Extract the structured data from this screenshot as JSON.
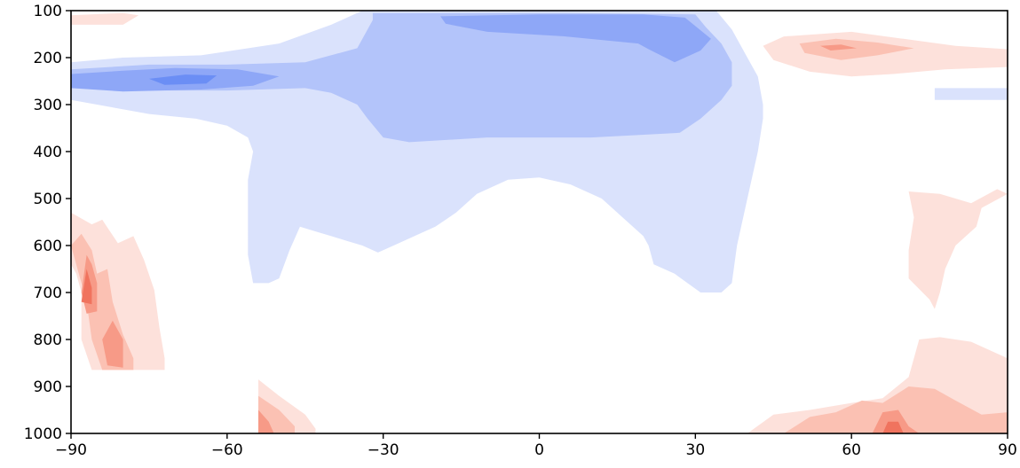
{
  "chart_data": {
    "type": "heatmap",
    "subtype": "filled-contour",
    "title": "",
    "xlabel": "",
    "ylabel": "",
    "xlim": [
      -90,
      90
    ],
    "ylim": [
      1000,
      100
    ],
    "y_inverted": true,
    "x_ticks": [
      -90,
      -60,
      -30,
      0,
      30,
      60,
      90
    ],
    "x_tick_labels": [
      "−90",
      "−60",
      "−30",
      "0",
      "30",
      "60",
      "90"
    ],
    "y_ticks": [
      100,
      200,
      300,
      400,
      500,
      600,
      700,
      800,
      900,
      1000
    ],
    "y_tick_labels": [
      "100",
      "200",
      "300",
      "400",
      "500",
      "600",
      "700",
      "800",
      "900",
      "1000"
    ],
    "colormap": "diverging blue-white-red (negative = blue, positive = red)",
    "grid": false,
    "colors": {
      "neg4": "#6b8ef5",
      "neg3": "#8ea7f7",
      "neg2": "#b3c4fa",
      "neg1": "#dae2fc",
      "pos1": "#fde1db",
      "pos2": "#fbc1b3",
      "pos3": "#f79a87",
      "pos4": "#f0735e"
    },
    "regions": [
      {
        "level": "neg1",
        "points": [
          [
            -90,
            210
          ],
          [
            -80,
            200
          ],
          [
            -65,
            195
          ],
          [
            -50,
            170
          ],
          [
            -40,
            130
          ],
          [
            -34,
            100
          ],
          [
            10,
            100
          ],
          [
            34,
            100
          ],
          [
            37,
            140
          ],
          [
            40,
            200
          ],
          [
            42,
            240
          ],
          [
            43,
            300
          ],
          [
            43,
            330
          ],
          [
            42,
            400
          ],
          [
            40,
            500
          ],
          [
            38,
            600
          ],
          [
            37,
            680
          ],
          [
            35,
            700
          ],
          [
            31,
            700
          ],
          [
            26,
            660
          ],
          [
            22,
            640
          ],
          [
            21,
            600
          ],
          [
            20,
            580
          ],
          [
            16,
            540
          ],
          [
            12,
            500
          ],
          [
            6,
            470
          ],
          [
            0,
            455
          ],
          [
            -6,
            460
          ],
          [
            -12,
            490
          ],
          [
            -16,
            530
          ],
          [
            -20,
            560
          ],
          [
            -24,
            580
          ],
          [
            -28,
            600
          ],
          [
            -31,
            615
          ],
          [
            -34,
            600
          ],
          [
            -37,
            590
          ],
          [
            -40,
            580
          ],
          [
            -43,
            570
          ],
          [
            -46,
            560
          ],
          [
            -48,
            610
          ],
          [
            -50,
            670
          ],
          [
            -52,
            680
          ],
          [
            -55,
            680
          ],
          [
            -56,
            620
          ],
          [
            -56,
            560
          ],
          [
            -56,
            460
          ],
          [
            -55,
            400
          ],
          [
            -56,
            370
          ],
          [
            -60,
            345
          ],
          [
            -66,
            330
          ],
          [
            -75,
            320
          ],
          [
            -85,
            300
          ],
          [
            -90,
            290
          ]
        ]
      },
      {
        "level": "neg1",
        "points": [
          [
            76,
            265
          ],
          [
            90,
            265
          ],
          [
            90,
            290
          ],
          [
            76,
            290
          ]
        ]
      },
      {
        "level": "neg2",
        "points": [
          [
            -90,
            225
          ],
          [
            -75,
            215
          ],
          [
            -60,
            215
          ],
          [
            -45,
            210
          ],
          [
            -35,
            180
          ],
          [
            -32,
            120
          ],
          [
            -32,
            105
          ],
          [
            5,
            105
          ],
          [
            30,
            108
          ],
          [
            32,
            135
          ],
          [
            35,
            170
          ],
          [
            37,
            210
          ],
          [
            37,
            260
          ],
          [
            35,
            290
          ],
          [
            31,
            330
          ],
          [
            27,
            360
          ],
          [
            10,
            370
          ],
          [
            -10,
            370
          ],
          [
            -25,
            380
          ],
          [
            -30,
            370
          ],
          [
            -33,
            330
          ],
          [
            -35,
            300
          ],
          [
            -40,
            275
          ],
          [
            -45,
            265
          ],
          [
            -60,
            270
          ],
          [
            -75,
            270
          ],
          [
            -90,
            260
          ]
        ]
      },
      {
        "level": "neg3",
        "points": [
          [
            -90,
            235
          ],
          [
            -80,
            228
          ],
          [
            -70,
            222
          ],
          [
            -58,
            225
          ],
          [
            -50,
            240
          ],
          [
            -55,
            260
          ],
          [
            -65,
            268
          ],
          [
            -80,
            272
          ],
          [
            -90,
            265
          ]
        ]
      },
      {
        "level": "neg3",
        "points": [
          [
            -19,
            112
          ],
          [
            0,
            108
          ],
          [
            20,
            108
          ],
          [
            28,
            115
          ],
          [
            33,
            160
          ],
          [
            31,
            185
          ],
          [
            26,
            210
          ],
          [
            21,
            182
          ],
          [
            19,
            170
          ],
          [
            5,
            155
          ],
          [
            -10,
            145
          ],
          [
            -18,
            128
          ]
        ]
      },
      {
        "level": "neg4",
        "points": [
          [
            -75,
            245
          ],
          [
            -68,
            236
          ],
          [
            -62,
            238
          ],
          [
            -64,
            255
          ],
          [
            -72,
            258
          ]
        ]
      },
      {
        "level": "pos1",
        "points": [
          [
            -90,
            110
          ],
          [
            -80,
            105
          ],
          [
            -77,
            110
          ],
          [
            -80,
            130
          ],
          [
            -90,
            130
          ]
        ]
      },
      {
        "level": "pos1",
        "points": [
          [
            43,
            175
          ],
          [
            47,
            155
          ],
          [
            60,
            145
          ],
          [
            70,
            160
          ],
          [
            80,
            175
          ],
          [
            90,
            182
          ],
          [
            90,
            220
          ],
          [
            78,
            225
          ],
          [
            68,
            235
          ],
          [
            60,
            240
          ],
          [
            52,
            230
          ],
          [
            45,
            205
          ]
        ]
      },
      {
        "level": "pos1",
        "points": [
          [
            -90,
            530
          ],
          [
            -86,
            555
          ],
          [
            -84,
            545
          ],
          [
            -81,
            595
          ],
          [
            -78,
            580
          ],
          [
            -76,
            630
          ],
          [
            -74,
            695
          ],
          [
            -73,
            775
          ],
          [
            -72,
            840
          ],
          [
            -72,
            865
          ],
          [
            -86,
            865
          ],
          [
            -88,
            800
          ],
          [
            -88,
            700
          ],
          [
            -89,
            660
          ],
          [
            -90,
            640
          ]
        ]
      },
      {
        "level": "pos1",
        "points": [
          [
            -54,
            885
          ],
          [
            -50,
            920
          ],
          [
            -45,
            960
          ],
          [
            -43,
            990
          ],
          [
            -43,
            1000
          ],
          [
            -54,
            1000
          ]
        ]
      },
      {
        "level": "pos1",
        "points": [
          [
            71,
            485
          ],
          [
            77,
            490
          ],
          [
            83,
            510
          ],
          [
            88,
            480
          ],
          [
            90,
            490
          ],
          [
            85,
            520
          ],
          [
            84,
            560
          ],
          [
            80,
            600
          ],
          [
            78,
            650
          ],
          [
            77,
            700
          ],
          [
            76,
            735
          ],
          [
            75,
            715
          ],
          [
            71,
            670
          ],
          [
            71,
            610
          ],
          [
            72,
            540
          ]
        ]
      },
      {
        "level": "pos1",
        "points": [
          [
            40,
            1000
          ],
          [
            45,
            960
          ],
          [
            52,
            950
          ],
          [
            60,
            935
          ],
          [
            66,
            925
          ],
          [
            71,
            880
          ],
          [
            73,
            800
          ],
          [
            77,
            795
          ],
          [
            83,
            805
          ],
          [
            90,
            840
          ],
          [
            90,
            1000
          ]
        ]
      },
      {
        "level": "pos2",
        "points": [
          [
            -90,
            600
          ],
          [
            -88,
            575
          ],
          [
            -86,
            610
          ],
          [
            -85,
            660
          ],
          [
            -83,
            650
          ],
          [
            -82,
            720
          ],
          [
            -80,
            790
          ],
          [
            -78,
            840
          ],
          [
            -78,
            865
          ],
          [
            -84,
            865
          ],
          [
            -86,
            800
          ],
          [
            -87,
            720
          ]
        ]
      },
      {
        "level": "pos2",
        "points": [
          [
            -54,
            920
          ],
          [
            -50,
            950
          ],
          [
            -47,
            985
          ],
          [
            -47,
            1000
          ],
          [
            -54,
            1000
          ]
        ]
      },
      {
        "level": "pos2",
        "points": [
          [
            50,
            170
          ],
          [
            57,
            160
          ],
          [
            65,
            168
          ],
          [
            72,
            180
          ],
          [
            65,
            195
          ],
          [
            58,
            205
          ],
          [
            51,
            190
          ]
        ]
      },
      {
        "level": "pos2",
        "points": [
          [
            47,
            1000
          ],
          [
            52,
            965
          ],
          [
            57,
            955
          ],
          [
            62,
            930
          ],
          [
            66,
            935
          ],
          [
            71,
            900
          ],
          [
            76,
            905
          ],
          [
            80,
            930
          ],
          [
            85,
            960
          ],
          [
            90,
            955
          ],
          [
            90,
            1000
          ]
        ]
      },
      {
        "level": "pos3",
        "points": [
          [
            -87,
            620
          ],
          [
            -86,
            640
          ],
          [
            -85,
            680
          ],
          [
            -85,
            740
          ],
          [
            -87,
            745
          ],
          [
            -88,
            700
          ]
        ]
      },
      {
        "level": "pos3",
        "points": [
          [
            -82,
            760
          ],
          [
            -80,
            800
          ],
          [
            -80,
            860
          ],
          [
            -83,
            855
          ],
          [
            -84,
            800
          ]
        ]
      },
      {
        "level": "pos3",
        "points": [
          [
            -54,
            950
          ],
          [
            -52,
            975
          ],
          [
            -51,
            1000
          ],
          [
            -54,
            1000
          ]
        ]
      },
      {
        "level": "pos3",
        "points": [
          [
            54,
            175
          ],
          [
            58,
            172
          ],
          [
            61,
            180
          ],
          [
            56,
            185
          ]
        ]
      },
      {
        "level": "pos3",
        "points": [
          [
            64,
            1000
          ],
          [
            66,
            955
          ],
          [
            69,
            950
          ],
          [
            71,
            985
          ],
          [
            73,
            1000
          ]
        ]
      },
      {
        "level": "pos4",
        "points": [
          [
            -87,
            650
          ],
          [
            -86,
            690
          ],
          [
            -86,
            725
          ],
          [
            -88,
            720
          ]
        ]
      },
      {
        "level": "pos4",
        "points": [
          [
            66,
            1000
          ],
          [
            67,
            975
          ],
          [
            69,
            975
          ],
          [
            70,
            1000
          ]
        ]
      }
    ]
  }
}
